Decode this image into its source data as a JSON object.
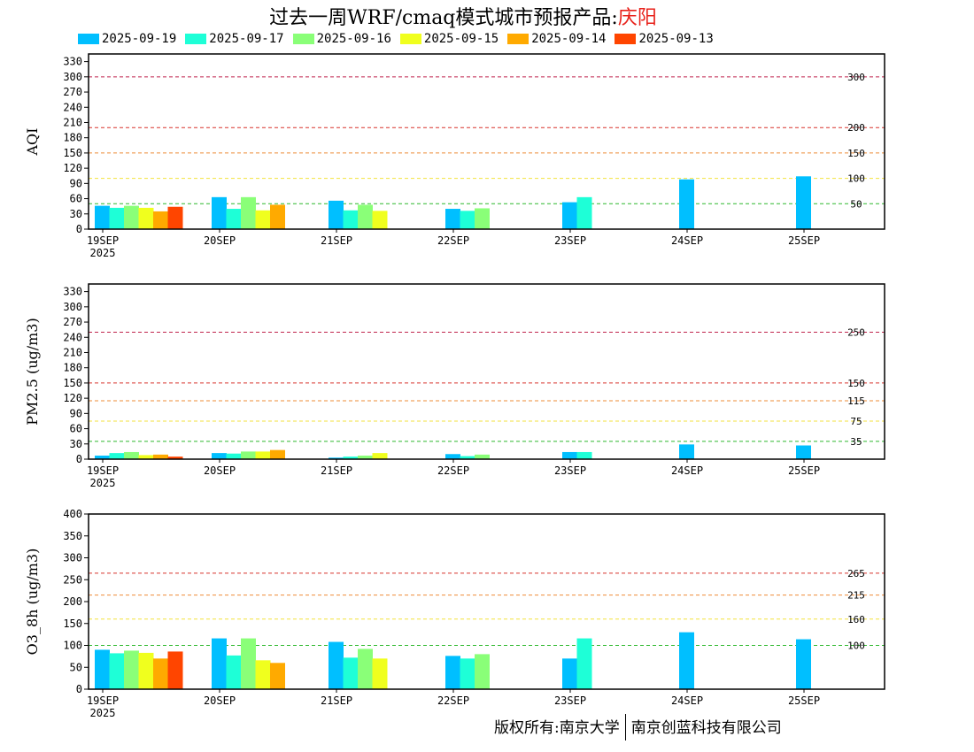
{
  "title": {
    "prefix": "过去一周WRF/cmaq模式城市预报产品:",
    "city": "庆阳"
  },
  "colors": {
    "series": [
      "#00bfff",
      "#1effd7",
      "#8aff78",
      "#f0ff1e",
      "#ffaa00",
      "#ff4500"
    ]
  },
  "copyright": {
    "left": "版权所有:南京大学",
    "right": "南京创蓝科技有限公司"
  },
  "chart_data": [
    {
      "type": "bar",
      "ylabel": "AQI",
      "ylim": [
        0,
        345
      ],
      "yticks": [
        0,
        30,
        60,
        90,
        120,
        150,
        180,
        210,
        240,
        270,
        300,
        330
      ],
      "categories": [
        "19SEP",
        "20SEP",
        "21SEP",
        "22SEP",
        "23SEP",
        "24SEP",
        "25SEP"
      ],
      "first_category_year": "2025",
      "series": [
        {
          "name": "2025-09-19",
          "values": [
            46,
            63,
            56,
            40,
            53,
            98,
            104
          ]
        },
        {
          "name": "2025-09-17",
          "values": [
            42,
            40,
            37,
            36,
            63,
            null,
            null
          ]
        },
        {
          "name": "2025-09-16",
          "values": [
            46,
            63,
            48,
            41,
            null,
            null,
            null
          ]
        },
        {
          "name": "2025-09-15",
          "values": [
            42,
            37,
            36,
            null,
            null,
            null,
            null
          ]
        },
        {
          "name": "2025-09-14",
          "values": [
            35,
            48,
            null,
            null,
            null,
            null,
            null
          ]
        },
        {
          "name": "2025-09-13",
          "values": [
            44,
            null,
            null,
            null,
            null,
            null,
            null
          ]
        }
      ],
      "thresholds": [
        {
          "value": 300,
          "label": "300",
          "color": "#c0244d"
        },
        {
          "value": 200,
          "label": "200",
          "color": "#d8342c"
        },
        {
          "value": 150,
          "label": "150",
          "color": "#ee8c37"
        },
        {
          "value": 100,
          "label": "100",
          "color": "#f3e23c"
        },
        {
          "value": 50,
          "label": "50",
          "color": "#2eb82e"
        }
      ]
    },
    {
      "type": "bar",
      "ylabel": "PM2.5 (ug/m3)",
      "ylim": [
        0,
        345
      ],
      "yticks": [
        0,
        30,
        60,
        90,
        120,
        150,
        180,
        210,
        240,
        270,
        300,
        330
      ],
      "categories": [
        "19SEP",
        "20SEP",
        "21SEP",
        "22SEP",
        "23SEP",
        "24SEP",
        "25SEP"
      ],
      "first_category_year": "2025",
      "series": [
        {
          "name": "2025-09-19",
          "values": [
            7,
            12,
            3,
            10,
            14,
            29,
            27
          ]
        },
        {
          "name": "2025-09-17",
          "values": [
            12,
            11,
            5,
            6,
            14,
            null,
            null
          ]
        },
        {
          "name": "2025-09-16",
          "values": [
            14,
            15,
            7,
            9,
            null,
            null,
            null
          ]
        },
        {
          "name": "2025-09-15",
          "values": [
            8,
            15,
            12,
            null,
            null,
            null,
            null
          ]
        },
        {
          "name": "2025-09-14",
          "values": [
            9,
            18,
            null,
            null,
            null,
            null,
            null
          ]
        },
        {
          "name": "2025-09-13",
          "values": [
            5,
            null,
            null,
            null,
            null,
            null,
            null
          ]
        }
      ],
      "thresholds": [
        {
          "value": 250,
          "label": "250",
          "color": "#c0244d"
        },
        {
          "value": 150,
          "label": "150",
          "color": "#d8342c"
        },
        {
          "value": 115,
          "label": "115",
          "color": "#ee8c37"
        },
        {
          "value": 75,
          "label": "75",
          "color": "#f3e23c"
        },
        {
          "value": 35,
          "label": "35",
          "color": "#2eb82e"
        }
      ]
    },
    {
      "type": "bar",
      "ylabel": "O3_8h (ug/m3)",
      "ylim": [
        0,
        400
      ],
      "yticks": [
        0,
        50,
        100,
        150,
        200,
        250,
        300,
        350,
        400
      ],
      "categories": [
        "19SEP",
        "20SEP",
        "21SEP",
        "22SEP",
        "23SEP",
        "24SEP",
        "25SEP"
      ],
      "first_category_year": "2025",
      "series": [
        {
          "name": "2025-09-19",
          "values": [
            90,
            116,
            108,
            76,
            70,
            130,
            114
          ]
        },
        {
          "name": "2025-09-17",
          "values": [
            82,
            77,
            72,
            70,
            116,
            null,
            null
          ]
        },
        {
          "name": "2025-09-16",
          "values": [
            88,
            116,
            92,
            80,
            null,
            null,
            null
          ]
        },
        {
          "name": "2025-09-15",
          "values": [
            83,
            66,
            70,
            null,
            null,
            null,
            null
          ]
        },
        {
          "name": "2025-09-14",
          "values": [
            70,
            60,
            null,
            null,
            null,
            null,
            null
          ]
        },
        {
          "name": "2025-09-13",
          "values": [
            86,
            null,
            null,
            null,
            null,
            null,
            null
          ]
        }
      ],
      "thresholds": [
        {
          "value": 265,
          "label": "265",
          "color": "#d8342c"
        },
        {
          "value": 215,
          "label": "215",
          "color": "#ee8c37"
        },
        {
          "value": 160,
          "label": "160",
          "color": "#f3e23c"
        },
        {
          "value": 100,
          "label": "100",
          "color": "#2eb82e"
        }
      ]
    }
  ]
}
